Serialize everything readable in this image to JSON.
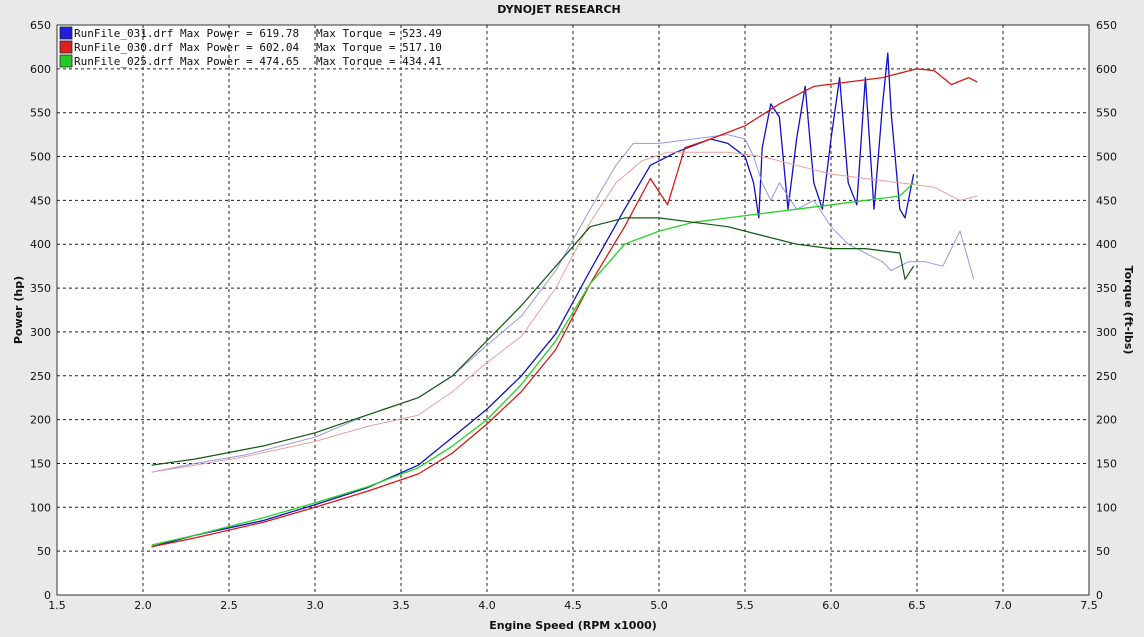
{
  "chart_data": {
    "type": "line",
    "title": "DYNOJET RESEARCH",
    "xlabel": "Engine Speed (RPM x1000)",
    "ylabel_left": "Power (hp)",
    "ylabel_right": "Torque (ft-lbs)",
    "xlim": [
      1.5,
      7.5
    ],
    "ylim": [
      0,
      650
    ],
    "x_ticks": [
      "1.5",
      "2.0",
      "2.5",
      "3.0",
      "3.5",
      "4.0",
      "4.5",
      "5.0",
      "5.5",
      "6.0",
      "6.5",
      "7.0",
      "7.5"
    ],
    "y_ticks": [
      "0",
      "50",
      "100",
      "150",
      "200",
      "250",
      "300",
      "350",
      "400",
      "450",
      "500",
      "550",
      "600",
      "650"
    ],
    "grid": true,
    "legend_position": "top-left",
    "legend": [
      {
        "file": "RunFile_031.drf",
        "power": "Max Power = 619.78",
        "torque": "Max Torque = 523.49",
        "color": "#1f1fdd"
      },
      {
        "file": "RunFile_030.drf",
        "power": "Max Power = 602.04",
        "torque": "Max Torque = 517.10",
        "color": "#e02020"
      },
      {
        "file": "RunFile_025.drf",
        "power": "Max Power = 474.65",
        "torque": "Max Torque = 434.41",
        "color": "#22cc22"
      }
    ],
    "series": [
      {
        "name": "RunFile_031.drf",
        "measure": "power",
        "color": "#1010c8",
        "width": 1.3,
        "x": [
          2.05,
          2.3,
          2.7,
          3.0,
          3.3,
          3.6,
          3.8,
          4.0,
          4.2,
          4.4,
          4.6,
          4.8,
          4.95,
          5.1,
          5.3,
          5.4,
          5.5,
          5.55,
          5.58,
          5.6,
          5.65,
          5.7,
          5.75,
          5.8,
          5.85,
          5.9,
          5.95,
          6.0,
          6.05,
          6.1,
          6.15,
          6.2,
          6.25,
          6.3,
          6.33,
          6.35,
          6.4,
          6.43,
          6.48
        ],
        "y": [
          55,
          68,
          85,
          103,
          122,
          148,
          180,
          212,
          250,
          298,
          370,
          440,
          490,
          505,
          520,
          515,
          500,
          470,
          430,
          510,
          560,
          545,
          440,
          520,
          580,
          470,
          440,
          520,
          590,
          470,
          445,
          590,
          440,
          560,
          618,
          550,
          440,
          430,
          480
        ]
      },
      {
        "name": "RunFile_031.drf",
        "measure": "torque",
        "color": "#9898e4",
        "width": 1.0,
        "x": [
          2.05,
          2.3,
          2.6,
          3.0,
          3.3,
          3.6,
          3.8,
          4.0,
          4.2,
          4.4,
          4.6,
          4.75,
          4.85,
          5.0,
          5.2,
          5.4,
          5.5,
          5.55,
          5.6,
          5.65,
          5.7,
          5.8,
          5.9,
          6.0,
          6.1,
          6.2,
          6.3,
          6.35,
          6.45,
          6.55,
          6.65,
          6.75,
          6.83
        ],
        "y": [
          140,
          150,
          160,
          180,
          205,
          225,
          250,
          285,
          318,
          370,
          440,
          490,
          515,
          515,
          520,
          525,
          520,
          500,
          470,
          450,
          470,
          440,
          450,
          420,
          400,
          390,
          380,
          370,
          380,
          380,
          375,
          415,
          360
        ]
      },
      {
        "name": "RunFile_030.drf",
        "measure": "power",
        "color": "#d81818",
        "width": 1.3,
        "x": [
          2.05,
          2.3,
          2.7,
          3.0,
          3.3,
          3.6,
          3.8,
          4.0,
          4.2,
          4.4,
          4.6,
          4.8,
          4.95,
          5.05,
          5.15,
          5.3,
          5.5,
          5.7,
          5.9,
          6.1,
          6.3,
          6.5,
          6.6,
          6.7,
          6.8,
          6.85
        ],
        "y": [
          55,
          65,
          83,
          100,
          118,
          138,
          162,
          195,
          232,
          280,
          355,
          420,
          475,
          445,
          510,
          520,
          535,
          560,
          580,
          585,
          590,
          600,
          598,
          582,
          590,
          585
        ]
      },
      {
        "name": "RunFile_030.drf",
        "measure": "torque",
        "color": "#eaa0a0",
        "width": 1.0,
        "x": [
          2.05,
          2.3,
          2.6,
          3.0,
          3.3,
          3.6,
          3.8,
          4.0,
          4.2,
          4.4,
          4.6,
          4.75,
          4.9,
          5.05,
          5.2,
          5.4,
          5.6,
          5.8,
          6.0,
          6.2,
          6.4,
          6.6,
          6.75,
          6.85
        ],
        "y": [
          140,
          148,
          158,
          175,
          192,
          205,
          232,
          265,
          295,
          350,
          425,
          470,
          495,
          505,
          505,
          505,
          500,
          490,
          480,
          475,
          470,
          465,
          450,
          455
        ]
      },
      {
        "name": "RunFile_025.drf",
        "measure": "power",
        "color": "#24d424",
        "width": 1.3,
        "x": [
          2.05,
          2.3,
          2.7,
          3.0,
          3.3,
          3.6,
          3.8,
          4.0,
          4.2,
          4.4,
          4.6,
          4.8,
          5.0,
          5.2,
          5.4,
          5.6,
          5.8,
          6.0,
          6.2,
          6.4,
          6.48
        ],
        "y": [
          57,
          68,
          88,
          105,
          123,
          145,
          170,
          200,
          240,
          290,
          355,
          400,
          415,
          425,
          430,
          435,
          440,
          445,
          450,
          455,
          470
        ]
      },
      {
        "name": "RunFile_025.drf",
        "measure": "torque",
        "color": "#0e5a0e",
        "width": 1.2,
        "x": [
          2.05,
          2.3,
          2.7,
          3.0,
          3.3,
          3.6,
          3.8,
          4.0,
          4.2,
          4.4,
          4.6,
          4.8,
          5.0,
          5.2,
          5.4,
          5.6,
          5.8,
          6.0,
          6.2,
          6.4,
          6.43,
          6.48
        ],
        "y": [
          148,
          155,
          170,
          185,
          205,
          225,
          250,
          290,
          330,
          375,
          420,
          430,
          430,
          425,
          420,
          410,
          400,
          395,
          395,
          390,
          360,
          375
        ]
      }
    ]
  }
}
